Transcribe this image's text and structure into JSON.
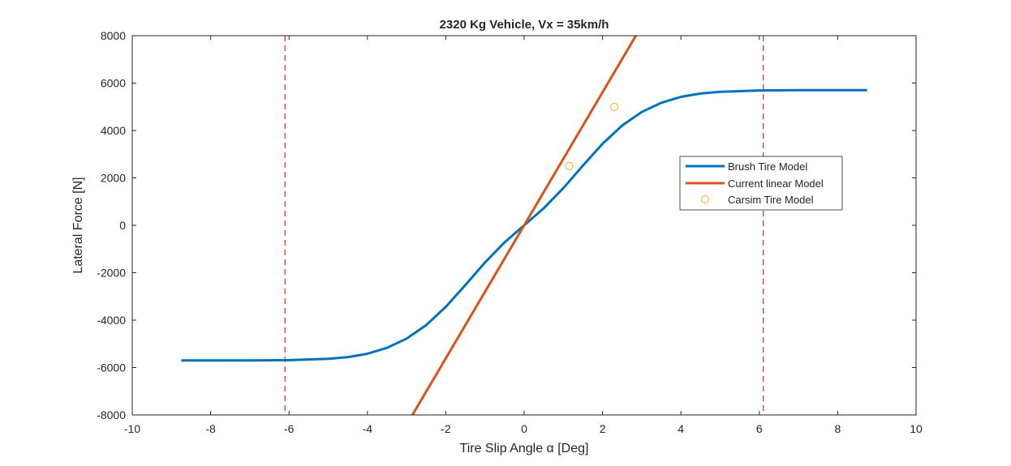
{
  "chart_data": {
    "type": "line",
    "title": "2320 Kg Vehicle, Vx = 35km/h",
    "xlabel": "Tire Slip Angle  α [Deg]",
    "ylabel": "Lateral Force [N]",
    "xlim": [
      -10,
      10
    ],
    "ylim": [
      -8000,
      8000
    ],
    "xticks": [
      "-10",
      "-8",
      "-6",
      "-4",
      "-2",
      "0",
      "2",
      "4",
      "6",
      "8",
      "10"
    ],
    "yticks": [
      "-8000",
      "-6000",
      "-4000",
      "-2000",
      "0",
      "2000",
      "4000",
      "6000",
      "8000"
    ],
    "grid": false,
    "legend_position": "right",
    "series": [
      {
        "name": "Brush Tire Model",
        "style": "line",
        "color": "#0072BD",
        "x": [
          -8.75,
          -8,
          -7,
          -6,
          -5,
          -4.5,
          -4,
          -3.5,
          -3,
          -2.5,
          -2,
          -1.5,
          -1,
          -0.5,
          0,
          0.5,
          1,
          1.5,
          2,
          2.5,
          3,
          3.5,
          4,
          4.5,
          5,
          6,
          7,
          8,
          8.75
        ],
        "y": [
          -5700,
          -5700,
          -5700,
          -5690,
          -5630,
          -5560,
          -5420,
          -5170,
          -4780,
          -4210,
          -3440,
          -2520,
          -1570,
          -720,
          0,
          720,
          1570,
          2520,
          3440,
          4210,
          4780,
          5170,
          5420,
          5560,
          5630,
          5690,
          5700,
          5700,
          5700
        ]
      },
      {
        "name": "Current linear Model",
        "style": "line",
        "color": "#D95319",
        "x": [
          -2.85,
          2.85
        ],
        "y": [
          -8000,
          8000
        ]
      },
      {
        "name": "Carsim Tire Model",
        "style": "marker",
        "color": "#EDB120",
        "x": [
          1.15,
          2.3
        ],
        "y": [
          2500,
          5000
        ]
      }
    ],
    "reference_lines": {
      "orientation": "vertical",
      "style": "dashed",
      "color": "#FF3333",
      "x": [
        -6.1,
        6.1
      ]
    }
  }
}
